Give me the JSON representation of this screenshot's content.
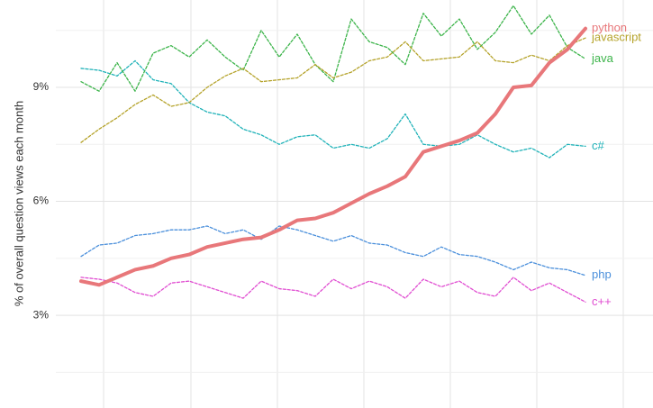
{
  "chart_data": {
    "type": "line",
    "ylabel": "% of overall question views each month",
    "categories": [
      null,
      null,
      null,
      null,
      null,
      null,
      null,
      null,
      null,
      null,
      null,
      null,
      null,
      null,
      null,
      null,
      null,
      null,
      null,
      null,
      null,
      null,
      null,
      null,
      null,
      null,
      null,
      null,
      null
    ],
    "ylim": [
      0.56,
      11.3
    ],
    "yticks": [
      {
        "value": 3,
        "label": "3%"
      },
      {
        "value": 6,
        "label": "6%"
      },
      {
        "value": 9,
        "label": "9%"
      }
    ],
    "minor_yticks": [
      1.5,
      4.5,
      7.5,
      10.5
    ],
    "grid": true,
    "series": [
      {
        "name": "python",
        "color": "#e8777a",
        "width": 4,
        "dashed": false,
        "values": [
          3.9,
          3.8,
          4.0,
          4.2,
          4.3,
          4.5,
          4.6,
          4.8,
          4.9,
          5.0,
          5.05,
          5.25,
          5.5,
          5.55,
          5.7,
          5.95,
          6.2,
          6.4,
          6.65,
          7.3,
          7.45,
          7.6,
          7.8,
          8.3,
          9.0,
          9.05,
          9.65,
          10.0,
          10.55
        ]
      },
      {
        "name": "javascript",
        "color": "#b5a32b",
        "width": 1.3,
        "dashed": true,
        "values": [
          7.55,
          7.9,
          8.2,
          8.55,
          8.8,
          8.5,
          8.6,
          9.0,
          9.3,
          9.5,
          9.15,
          9.2,
          9.25,
          9.6,
          9.25,
          9.4,
          9.7,
          9.8,
          10.2,
          9.7,
          9.75,
          9.8,
          10.2,
          9.7,
          9.65,
          9.85,
          9.7,
          10.1,
          10.3
        ]
      },
      {
        "name": "java",
        "color": "#3cb44a",
        "width": 1.3,
        "dashed": true,
        "values": [
          9.15,
          8.9,
          9.65,
          8.9,
          9.9,
          10.1,
          9.8,
          10.25,
          9.8,
          9.45,
          10.5,
          9.8,
          10.4,
          9.6,
          9.15,
          10.8,
          10.2,
          10.05,
          9.6,
          10.95,
          10.35,
          10.8,
          10.0,
          10.45,
          11.15,
          10.4,
          10.9,
          10.05,
          9.75
        ]
      },
      {
        "name": "c#",
        "color": "#1fb2b8",
        "width": 1.3,
        "dashed": true,
        "values": [
          9.5,
          9.45,
          9.3,
          9.7,
          9.2,
          9.1,
          8.6,
          8.35,
          8.25,
          7.9,
          7.75,
          7.5,
          7.7,
          7.75,
          7.4,
          7.5,
          7.4,
          7.65,
          8.3,
          7.5,
          7.45,
          7.5,
          7.75,
          7.5,
          7.3,
          7.4,
          7.15,
          7.5,
          7.45
        ]
      },
      {
        "name": "php",
        "color": "#4a8fdb",
        "width": 1.3,
        "dashed": true,
        "values": [
          4.55,
          4.85,
          4.9,
          5.1,
          5.15,
          5.25,
          5.25,
          5.35,
          5.15,
          5.25,
          5.0,
          5.35,
          5.25,
          5.1,
          4.95,
          5.1,
          4.9,
          4.85,
          4.65,
          4.55,
          4.8,
          4.6,
          4.55,
          4.4,
          4.2,
          4.4,
          4.25,
          4.2,
          4.05
        ]
      },
      {
        "name": "c++",
        "color": "#e04cd1",
        "width": 1.3,
        "dashed": true,
        "values": [
          4.0,
          3.95,
          3.85,
          3.6,
          3.5,
          3.85,
          3.9,
          3.75,
          3.6,
          3.45,
          3.9,
          3.7,
          3.65,
          3.5,
          3.95,
          3.7,
          3.9,
          3.75,
          3.45,
          3.95,
          3.75,
          3.9,
          3.6,
          3.5,
          4.0,
          3.65,
          3.85,
          3.6,
          3.35
        ]
      }
    ]
  }
}
